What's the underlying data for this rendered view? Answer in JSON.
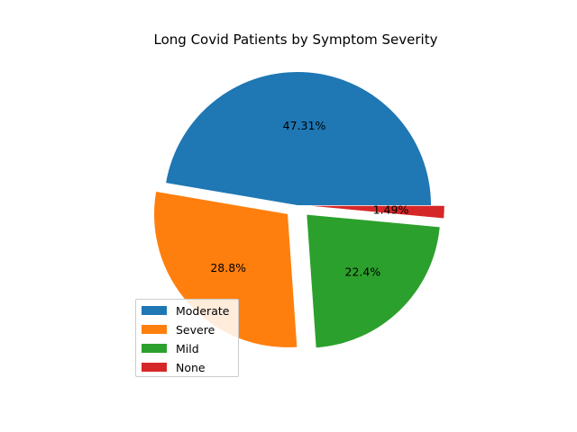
{
  "chart_data": {
    "type": "pie",
    "title": "Long Covid Patients by Symptom Severity",
    "categories": [
      "Moderate",
      "Severe",
      "Mild",
      "None"
    ],
    "values": [
      47.31,
      28.8,
      22.4,
      1.49
    ],
    "value_labels": [
      "47.31%",
      "28.8%",
      "22.4%",
      "1.49%"
    ],
    "exploded": [
      false,
      true,
      true,
      true
    ],
    "colors": [
      "#1f77b4",
      "#ff7f0e",
      "#2ca02c",
      "#d62728"
    ],
    "start_angle_deg": 0,
    "direction": "counterclockwise",
    "legend": {
      "position": "lower-left",
      "entries": [
        "Moderate",
        "Severe",
        "Mild",
        "None"
      ]
    }
  }
}
